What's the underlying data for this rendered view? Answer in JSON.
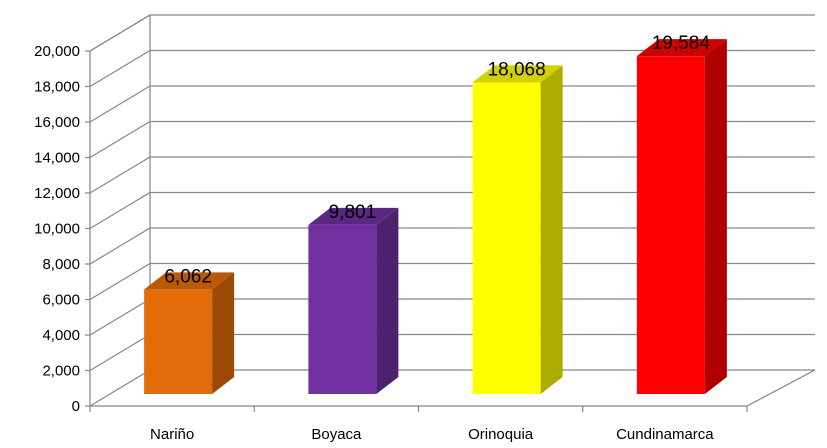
{
  "chart_data": {
    "type": "bar",
    "categories": [
      "Nariño",
      "Boyaca",
      "Orinoquia",
      "Cundinamarca"
    ],
    "values": [
      6062,
      9801,
      18068,
      19584
    ],
    "value_labels": [
      "6,062",
      "9,801",
      "18,068",
      "19,584"
    ],
    "colors": [
      "#E36C0A",
      "#7030A0",
      "#FFFF00",
      "#FF0000"
    ],
    "ylim": [
      0,
      20000
    ],
    "yticks": [
      0,
      2000,
      4000,
      6000,
      8000,
      10000,
      12000,
      14000,
      16000,
      18000,
      20000
    ],
    "ytick_labels": [
      "0",
      "2,000",
      "4,000",
      "6,000",
      "8,000",
      "10,000",
      "12,000",
      "14,000",
      "16,000",
      "18,000",
      "20,000"
    ],
    "grid": true,
    "three_d": true,
    "title": "",
    "xlabel": "",
    "ylabel": "",
    "legend": "none"
  }
}
